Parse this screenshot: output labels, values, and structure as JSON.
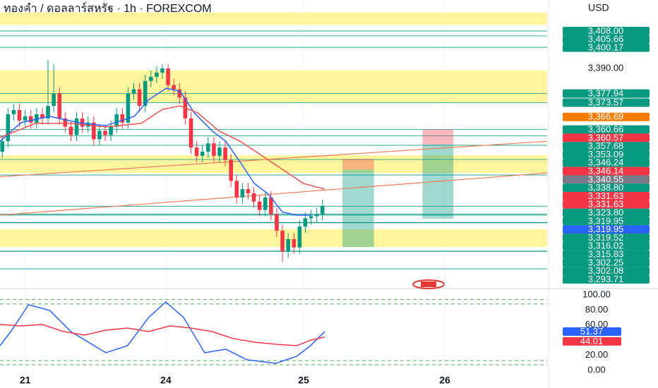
{
  "chart_data": [
    {
      "type": "candlestick",
      "title": "ทองคำ / ดอลลาร์สหรัฐ · 1h · FOREXCOM",
      "currency": "USD",
      "x": [
        0,
        1,
        2,
        3,
        4,
        5,
        6,
        7,
        8,
        9,
        10,
        11,
        12,
        13,
        14,
        15,
        16,
        17,
        18,
        19,
        20,
        21,
        22,
        23,
        24,
        25,
        26,
        27,
        28,
        29,
        30,
        31,
        32,
        33,
        34,
        35,
        36,
        37,
        38,
        39,
        40,
        41,
        42,
        43,
        44,
        45,
        46,
        47,
        48,
        49,
        50,
        51,
        52,
        53,
        54,
        55,
        56
      ],
      "open": [
        3350,
        3355,
        3368,
        3370,
        3365,
        3367,
        3364,
        3368,
        3366,
        3372,
        3378,
        3366,
        3362,
        3358,
        3366,
        3362,
        3364,
        3356,
        3360,
        3358,
        3362,
        3368,
        3364,
        3378,
        3380,
        3372,
        3384,
        3386,
        3388,
        3390,
        3382,
        3380,
        3376,
        3366,
        3352,
        3348,
        3350,
        3354,
        3348,
        3352,
        3346,
        3336,
        3328,
        3332,
        3330,
        3326,
        3322,
        3328,
        3320,
        3312,
        3302,
        3308,
        3304,
        3314,
        3318,
        3319,
        3320
      ],
      "high": [
        3358,
        3371,
        3373,
        3373,
        3370,
        3370,
        3371,
        3371,
        3394,
        3392,
        3381,
        3369,
        3365,
        3369,
        3369,
        3367,
        3367,
        3363,
        3363,
        3365,
        3371,
        3371,
        3381,
        3383,
        3383,
        3387,
        3389,
        3391,
        3392,
        3392,
        3385,
        3383,
        3379,
        3369,
        3355,
        3353,
        3357,
        3357,
        3355,
        3355,
        3349,
        3339,
        3335,
        3335,
        3333,
        3329,
        3331,
        3331,
        3323,
        3315,
        3311,
        3311,
        3317,
        3321,
        3322,
        3323,
        3327
      ],
      "low": [
        3347,
        3352,
        3365,
        3362,
        3362,
        3361,
        3361,
        3363,
        3363,
        3369,
        3363,
        3359,
        3355,
        3355,
        3359,
        3359,
        3353,
        3353,
        3355,
        3355,
        3359,
        3361,
        3361,
        3375,
        3369,
        3369,
        3381,
        3383,
        3385,
        3379,
        3377,
        3373,
        3363,
        3349,
        3345,
        3345,
        3347,
        3345,
        3345,
        3343,
        3333,
        3325,
        3325,
        3327,
        3323,
        3319,
        3319,
        3317,
        3309,
        3297,
        3299,
        3301,
        3301,
        3311,
        3315,
        3316,
        3317
      ],
      "close": [
        3355,
        3368,
        3370,
        3365,
        3367,
        3364,
        3368,
        3366,
        3372,
        3378,
        3366,
        3362,
        3358,
        3366,
        3362,
        3364,
        3356,
        3360,
        3358,
        3362,
        3368,
        3364,
        3378,
        3380,
        3372,
        3384,
        3386,
        3388,
        3390,
        3382,
        3380,
        3376,
        3366,
        3352,
        3348,
        3350,
        3354,
        3348,
        3352,
        3346,
        3336,
        3328,
        3332,
        3330,
        3326,
        3322,
        3328,
        3320,
        3312,
        3302,
        3308,
        3304,
        3314,
        3318,
        3319,
        3320,
        3324
      ],
      "up_color": "#089981",
      "down_color": "#f23645",
      "xlim": [
        -0.4,
        95.3
      ],
      "ylim": [
        3285.6,
        3422.9
      ],
      "xticks": [
        {
          "value": 4,
          "label": "21"
        },
        {
          "value": 28.6,
          "label": "24"
        },
        {
          "value": 52.7,
          "label": "25"
        },
        {
          "value": 77.4,
          "label": "26"
        }
      ],
      "yticks": [
        {
          "value": 3390,
          "label": "3,390.00"
        }
      ],
      "lines": [
        {
          "color": "#2962ff",
          "x": [
            -0.4,
            3.3,
            8.3,
            13.2,
            18.1,
            23.1,
            25.6,
            28.7,
            31.1,
            33.6,
            36.7,
            39.1,
            41.6,
            44.1,
            46.5,
            49,
            51.5,
            54
          ],
          "values": [
            3355,
            3364,
            3367,
            3364,
            3362.5,
            3367,
            3375,
            3380.5,
            3379,
            3368.6,
            3360,
            3355,
            3345,
            3334.7,
            3329.7,
            3321,
            3319.5,
            3319.5
          ]
        },
        {
          "color": "#f0524f",
          "x": [
            -0.4,
            5.8,
            12,
            18.1,
            24.3,
            28,
            31.1,
            34.2,
            37.9,
            41.6,
            45.3,
            49,
            52.7,
            56.4
          ],
          "values": [
            3356.8,
            3363.6,
            3363.6,
            3361.9,
            3363.6,
            3370.3,
            3372,
            3368.6,
            3360,
            3355,
            3348.3,
            3341.5,
            3334.7,
            3332
          ]
        }
      ],
      "zones": [
        [
          3411,
          3416.8
        ],
        [
          3373.7,
          3389
        ],
        [
          3339.8,
          3348.3
        ],
        [
          3304.2,
          3312.7
        ]
      ],
      "zone_color": "#fff59d",
      "trendlines": [
        {
          "x": [
            -0.4,
            95.3
          ],
          "values": [
            3338,
            3355
          ]
        },
        {
          "x": [
            -0.4,
            95.3
          ],
          "values": [
            3319.5,
            3339.8
          ]
        }
      ],
      "trend_color": "#ef7c55",
      "positions": [
        {
          "x": [
            59.5,
            65
          ],
          "stop": 3346.6,
          "entry": 3341.5,
          "target": 3304.2
        },
        {
          "x": [
            73.5,
            78.9
          ],
          "stop": 3360.8,
          "entry": 3353.4,
          "target": 3317.8
        }
      ],
      "price_tags": [
        {
          "value": 3408,
          "label": "3,408.00",
          "color": "#089981"
        },
        {
          "value": 3405.66,
          "label": "3,405.66",
          "color": "#089981"
        },
        {
          "value": 3400.17,
          "label": "3,400.17",
          "color": "#089981"
        },
        {
          "value": 3377.94,
          "label": "3,377.94",
          "color": "#089981"
        },
        {
          "value": 3373.57,
          "label": "3,373.57",
          "color": "#089981"
        },
        {
          "value": 3366.69,
          "label": "3,366.69",
          "color": "#f57c00"
        },
        {
          "value": 3360.66,
          "label": "3,360.66",
          "color": "#089981"
        },
        {
          "value": 3360.57,
          "label": "3,360.57",
          "color": "#f23645"
        },
        {
          "value": 3357.68,
          "label": "3,357.68",
          "color": "#089981"
        },
        {
          "value": 3353.09,
          "label": "3,353.09",
          "color": "#089981"
        },
        {
          "value": 3346.24,
          "label": "3,346.24",
          "color": "#089981"
        },
        {
          "value": 3346.14,
          "label": "3,346.14",
          "color": "#f23645"
        },
        {
          "value": 3340.55,
          "label": "3,340.55",
          "color": "#787b86"
        },
        {
          "value": 3338.8,
          "label": "3,338.80",
          "color": "#089981"
        },
        {
          "value": 3331.63,
          "label": "3,331.63",
          "color": "#f23645"
        },
        {
          "value": 3331.63,
          "label": "3,331.63",
          "color": "#f23645"
        },
        {
          "value": 3323.8,
          "label": "3,323.80",
          "color": "#089981"
        },
        {
          "value": 3319.95,
          "label": "3,319.95",
          "color": "#089981"
        },
        {
          "value": 3319.95,
          "label": "3,319.95",
          "color": "#2962ff"
        },
        {
          "value": 3319.52,
          "label": "3,319.52",
          "color": "#089981"
        },
        {
          "value": 3316.02,
          "label": "3,316.02",
          "color": "#089981"
        },
        {
          "value": 3315.83,
          "label": "3,315.83",
          "color": "#089981"
        },
        {
          "value": 3302.25,
          "label": "3,302.25",
          "color": "#089981"
        },
        {
          "value": 3302.08,
          "label": "3,302.08",
          "color": "#089981"
        },
        {
          "value": 3293.71,
          "label": "3,293.71",
          "color": "#089981"
        }
      ]
    },
    {
      "type": "line",
      "xlim": [
        -0.4,
        95.3
      ],
      "ylim": [
        0,
        100
      ],
      "yticks": [
        {
          "value": 100,
          "label": "100.00"
        },
        {
          "value": 80,
          "label": "80.00"
        },
        {
          "value": 60,
          "label": "60.00"
        },
        {
          "value": 20,
          "label": "20.00"
        },
        {
          "value": 0,
          "label": "0.00"
        }
      ],
      "bands": [
        7.5,
        13,
        88,
        94
      ],
      "band_color": "#4caf50",
      "series": [
        {
          "color": "#2962ff",
          "x": [
            -0.4,
            1.5,
            4.6,
            8.3,
            12,
            18.1,
            21.9,
            25.6,
            28.6,
            31.7,
            35.4,
            39.1,
            42.8,
            47.8,
            51.5,
            53.9,
            56.4
          ],
          "values": [
            32.7,
            51.4,
            86.9,
            79.4,
            51.4,
            23.4,
            32.7,
            70.1,
            90.7,
            70.1,
            23.4,
            28,
            14,
            9.3,
            18.7,
            32.7,
            51.37
          ]
        },
        {
          "color": "#f23645",
          "x": [
            -0.4,
            3.3,
            7,
            10.7,
            14.4,
            18.1,
            21.9,
            25.6,
            29.3,
            33,
            36.7,
            40.4,
            44.1,
            47.8,
            51.5,
            54,
            56.4
          ],
          "values": [
            60.7,
            58.9,
            60.7,
            51.4,
            46.7,
            53.3,
            56.1,
            51.4,
            58.9,
            56.1,
            51.4,
            42.1,
            37.4,
            34.6,
            32.7,
            40.2,
            44.01
          ]
        }
      ]
    }
  ]
}
